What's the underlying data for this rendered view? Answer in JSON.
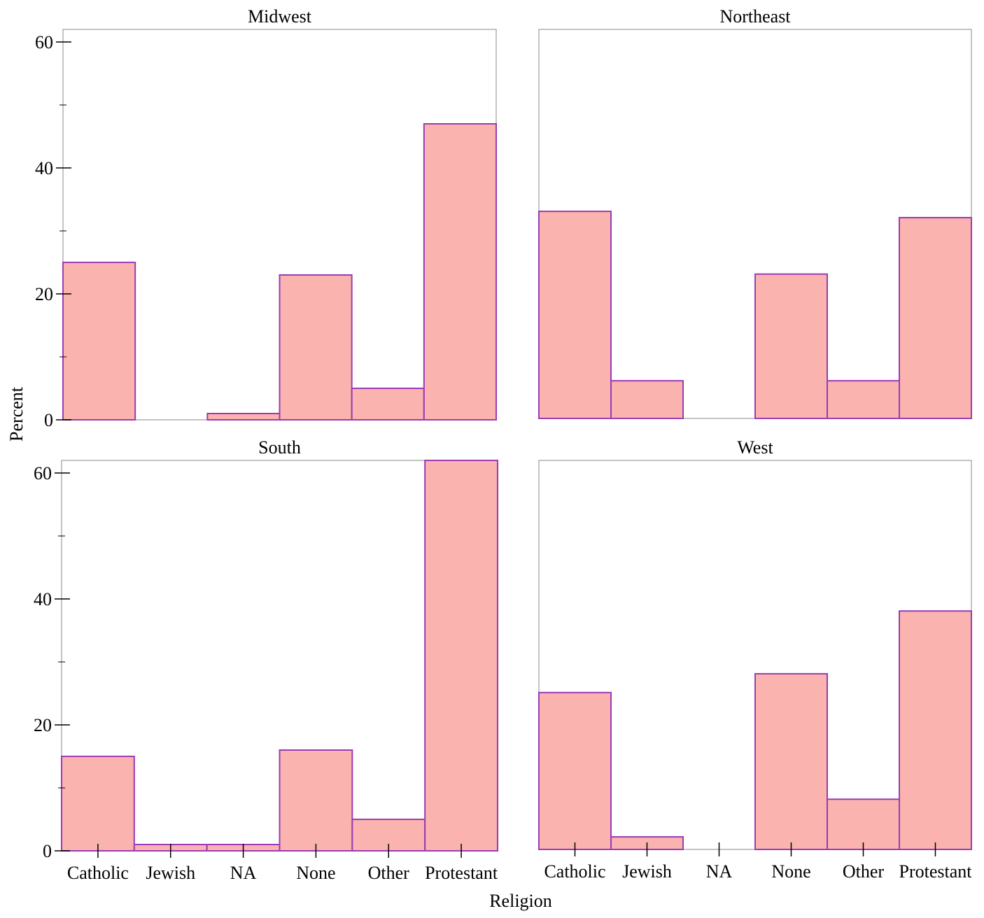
{
  "chart_data": {
    "type": "bar",
    "xlabel": "Religion",
    "ylabel": "Percent",
    "categories": [
      "Catholic",
      "Jewish",
      "NA",
      "None",
      "Other",
      "Protestant"
    ],
    "ylim": [
      0,
      62
    ],
    "yticks": [
      0,
      20,
      40,
      60
    ],
    "grid": false,
    "colors": {
      "bar_fill": "#fab3ae",
      "bar_stroke": "#9b3bb5",
      "frame": "#888888"
    },
    "panels": [
      {
        "title": "Midwest",
        "values": [
          25,
          0,
          1,
          23,
          5,
          47
        ]
      },
      {
        "title": "Northeast",
        "values": [
          33,
          6,
          0,
          23,
          6,
          32
        ]
      },
      {
        "title": "South",
        "values": [
          15,
          1,
          1,
          16,
          5,
          62
        ]
      },
      {
        "title": "West",
        "values": [
          25,
          2,
          0,
          28,
          8,
          38
        ]
      }
    ]
  }
}
